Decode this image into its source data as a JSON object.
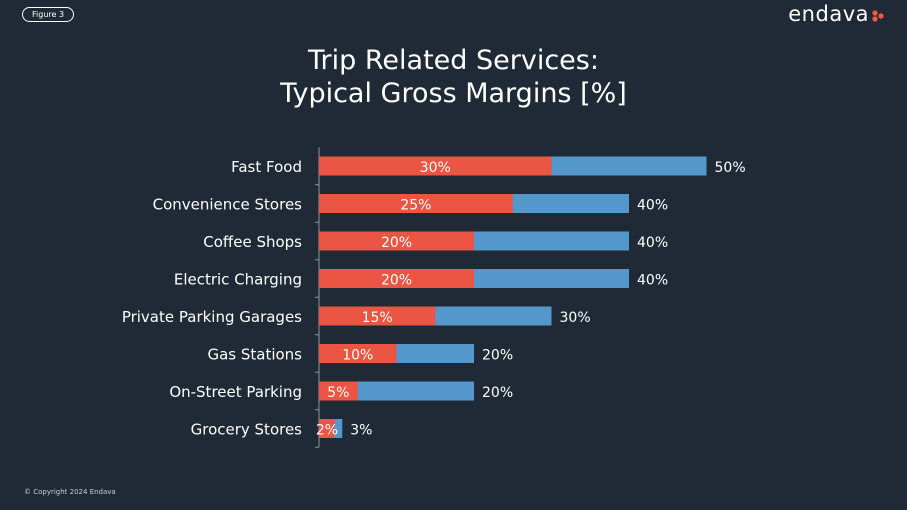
{
  "figure_label": "Figure 3",
  "brand": "endava",
  "copyright": "© Copyright 2024 Endava",
  "colors": {
    "background": "#1f2a36",
    "inner": "#ea5544",
    "outer": "#5498cb",
    "brand_accent": "#ff5640"
  },
  "chart_data": {
    "type": "bar",
    "orientation": "horizontal",
    "title": "Trip Related Services:\nTypical Gross Margins [%]",
    "title_lines": [
      "Trip Related Services:",
      "Typical Gross Margins [%]"
    ],
    "categories": [
      "Fast Food",
      "Convenience Stores",
      "Coffee Shops",
      "Electric Charging",
      "Private Parking Garages",
      "Gas Stations",
      "On-Street Parking",
      "Grocery Stores"
    ],
    "series": [
      {
        "color": "#ea5544",
        "values": [
          30,
          25,
          20,
          20,
          15,
          10,
          5,
          2
        ],
        "labels": [
          "30%",
          "25%",
          "20%",
          "20%",
          "15%",
          "10%",
          "5%",
          "2%"
        ]
      },
      {
        "color": "#5498cb",
        "values": [
          50,
          40,
          40,
          40,
          30,
          20,
          20,
          3
        ],
        "labels": [
          "50%",
          "40%",
          "40%",
          "40%",
          "30%",
          "20%",
          "20%",
          "3%"
        ]
      }
    ],
    "xlim": [
      0,
      50
    ],
    "grid": false,
    "legend": "none"
  }
}
